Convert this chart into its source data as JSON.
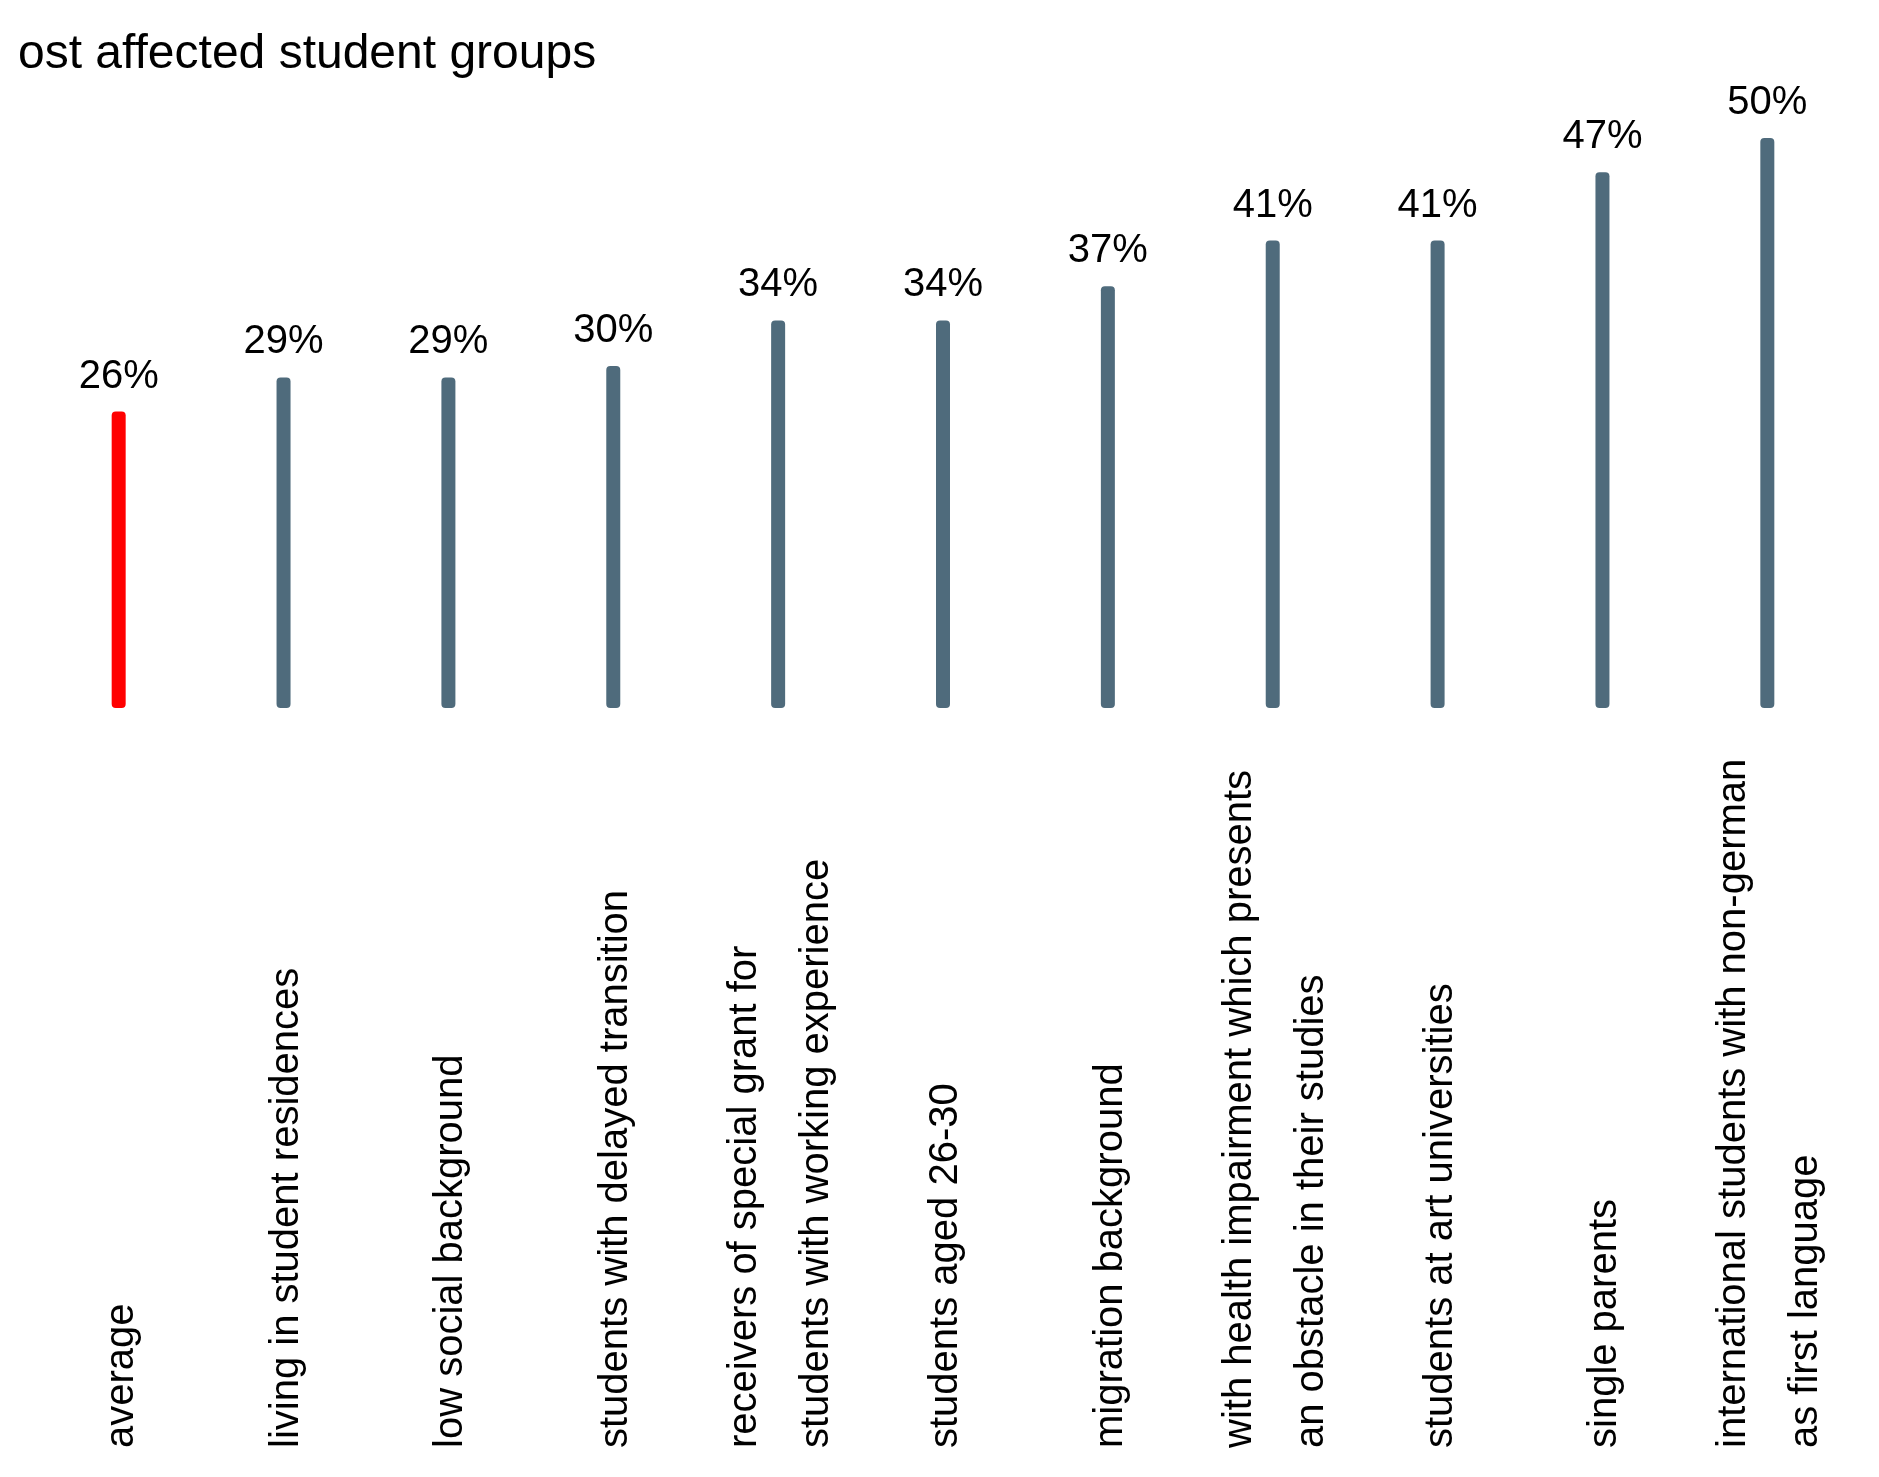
{
  "chart_data": {
    "type": "bar",
    "title": "ost affected student groups",
    "categories": [
      "average",
      "living in student residences",
      "low social background",
      "students with delayed transition",
      "receivers of special grant for students with working experience",
      "students aged 26-30",
      "migration background",
      "with health impairment which presents an obstacle in their studies",
      "students at art universities",
      "single parents",
      "international students with non-german as first language"
    ],
    "values": [
      26,
      29,
      29,
      30,
      34,
      34,
      37,
      41,
      41,
      47,
      50
    ],
    "colors": [
      "#ff0000",
      "#4f6b7c",
      "#4f6b7c",
      "#4f6b7c",
      "#4f6b7c",
      "#4f6b7c",
      "#4f6b7c",
      "#4f6b7c",
      "#4f6b7c",
      "#4f6b7c",
      "#4f6b7c"
    ],
    "value_labels": [
      "26%",
      "29%",
      "29%",
      "30%",
      "34%",
      "34%",
      "37%",
      "41%",
      "41%",
      "47%",
      "50%"
    ]
  }
}
